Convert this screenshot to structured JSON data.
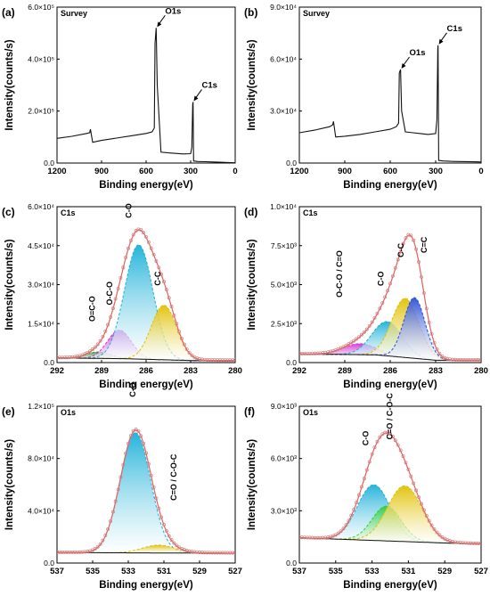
{
  "figure": {
    "x_axis_label": "Binding energy(eV)",
    "y_axis_label": "Intensity(counts/s)"
  },
  "chart_data": [
    {
      "panel": "(a)",
      "name": "Survey",
      "type": "line",
      "xlim": [
        1200,
        0
      ],
      "xticks": [
        "1200",
        "900",
        "600",
        "300",
        "0"
      ],
      "ylim": [
        0,
        600000
      ],
      "yticks": [
        "0.0",
        "2.0×10⁵",
        "4.0×10⁵",
        "6.0×10⁵"
      ],
      "series": [
        {
          "x": [
            1200,
            1100,
            1000,
            980,
            975,
            960,
            900,
            800,
            700,
            600,
            560,
            545,
            540,
            532,
            525,
            500,
            450,
            400,
            350,
            300,
            292,
            286,
            284,
            280,
            250,
            200,
            150,
            100,
            50,
            0
          ],
          "y": [
            95000,
            103000,
            114000,
            117000,
            130000,
            80000,
            87000,
            96000,
            105000,
            114000,
            120000,
            135000,
            460000,
            520000,
            300000,
            42000,
            39000,
            37000,
            35000,
            36000,
            60000,
            225000,
            235000,
            8000,
            6000,
            5000,
            4000,
            3000,
            2000,
            1000
          ]
        }
      ],
      "annotations": [
        {
          "text": "O1s",
          "x": 532,
          "y": 520000
        },
        {
          "text": "C1s",
          "x": 285,
          "y": 235000
        }
      ]
    },
    {
      "panel": "(b)",
      "name": "Survey",
      "type": "line",
      "xlim": [
        1200,
        0
      ],
      "xticks": [
        "1200",
        "900",
        "600",
        "300",
        "0"
      ],
      "ylim": [
        0,
        90000
      ],
      "yticks": [
        "0.0",
        "3.0×10⁴",
        "6.0×10⁴",
        "9.0×10⁴"
      ],
      "series": [
        {
          "x": [
            1200,
            1100,
            1000,
            980,
            975,
            960,
            900,
            800,
            700,
            600,
            560,
            545,
            540,
            532,
            525,
            500,
            450,
            400,
            350,
            300,
            292,
            286,
            284,
            280,
            250,
            200,
            150,
            100,
            50,
            0
          ],
          "y": [
            17500,
            19000,
            21000,
            22000,
            24000,
            15000,
            15500,
            16500,
            18000,
            19500,
            21000,
            23000,
            52000,
            54000,
            30000,
            18000,
            17500,
            17000,
            16500,
            17000,
            25000,
            66000,
            68000,
            1500,
            1200,
            1000,
            900,
            800,
            700,
            600
          ]
        }
      ],
      "annotations": [
        {
          "text": "O1s",
          "x": 532,
          "y": 54000
        },
        {
          "text": "C1s",
          "x": 285,
          "y": 68000
        }
      ]
    },
    {
      "panel": "(c)",
      "name": "C1s",
      "type": "line",
      "xlim": [
        292,
        280
      ],
      "xticks": [
        "292",
        "289",
        "286",
        "283",
        "280"
      ],
      "ylim": [
        0,
        60000
      ],
      "yticks": [
        "0.0",
        "1.5×10⁴",
        "3.0×10⁴",
        "4.5×10⁴",
        "6.0×10⁴"
      ],
      "peaks": [
        {
          "name": "O=C-O",
          "center": 289.2,
          "height": 2500,
          "width": 0.8,
          "color": "#3a9b3a"
        },
        {
          "name": "O-C-O",
          "center": 287.8,
          "height": 11000,
          "width": 0.8,
          "color": "#d633d6"
        },
        {
          "name": "C-O",
          "center": 286.5,
          "height": 44000,
          "width": 0.95,
          "color": "#1ab0d8"
        },
        {
          "name": "C-C",
          "center": 284.8,
          "height": 21000,
          "width": 0.85,
          "color": "#e0c000"
        }
      ],
      "background": [
        [
          292,
          1800
        ],
        [
          287.5,
          1500
        ],
        [
          283,
          800
        ],
        [
          280,
          800
        ]
      ]
    },
    {
      "panel": "(d)",
      "name": "C1s",
      "type": "line",
      "xlim": [
        292,
        280
      ],
      "xticks": [
        "292",
        "289",
        "286",
        "283",
        "280"
      ],
      "ylim": [
        0,
        10000
      ],
      "yticks": [
        "0.0",
        "2.5×10³",
        "5.0×10³",
        "7.5×10³",
        "1.0×10⁴"
      ],
      "peaks": [
        {
          "name": "O-C-O / C=O",
          "center": 288.0,
          "height": 700,
          "width": 1.1,
          "color": "#d633d6"
        },
        {
          "name": "C-O",
          "center": 286.2,
          "height": 2200,
          "width": 1.0,
          "color": "#1ab0d8"
        },
        {
          "name": "C-C",
          "center": 285.0,
          "height": 3800,
          "width": 0.9,
          "color": "#e0c000"
        },
        {
          "name": "C=C",
          "center": 284.4,
          "height": 3900,
          "width": 0.7,
          "color": "#2a4fd8"
        }
      ],
      "background": [
        [
          292,
          550
        ],
        [
          287,
          500
        ],
        [
          283,
          150
        ],
        [
          280,
          150
        ]
      ]
    },
    {
      "panel": "(e)",
      "name": "O1s",
      "type": "line",
      "xlim": [
        537,
        527
      ],
      "xticks": [
        "537",
        "535",
        "533",
        "531",
        "529",
        "527"
      ],
      "ylim": [
        0,
        120000
      ],
      "yticks": [
        "0.0",
        "4.0×10⁴",
        "8.0×10⁴",
        "1.2×10⁵"
      ],
      "peaks": [
        {
          "name": "C-O",
          "center": 532.6,
          "height": 92000,
          "width": 0.85,
          "color": "#1ab0d8"
        },
        {
          "name": "C=O / C-O-C",
          "center": 531.3,
          "height": 6000,
          "width": 0.9,
          "color": "#e0c000"
        }
      ],
      "background": [
        [
          537,
          8000
        ],
        [
          527,
          7500
        ]
      ]
    },
    {
      "panel": "(f)",
      "name": "O1s",
      "type": "line",
      "xlim": [
        537,
        527
      ],
      "xticks": [
        "537",
        "535",
        "533",
        "531",
        "529",
        "527"
      ],
      "ylim": [
        0,
        9000
      ],
      "yticks": [
        "0.0",
        "3.0×10³",
        "6.0×10³",
        "9.0×10³"
      ],
      "peaks": [
        {
          "name": "C-O",
          "center": 532.9,
          "height": 3200,
          "width": 0.9,
          "color": "#1ab0d8"
        },
        {
          "name": "",
          "center": 532.2,
          "height": 2000,
          "width": 0.8,
          "color": "#2ecc40"
        },
        {
          "name": "C=O / C-O-C",
          "center": 531.2,
          "height": 3200,
          "width": 0.95,
          "color": "#e0c000"
        }
      ],
      "background": [
        [
          537,
          1450
        ],
        [
          533,
          1300
        ],
        [
          529,
          1150
        ],
        [
          527,
          1100
        ]
      ]
    }
  ]
}
